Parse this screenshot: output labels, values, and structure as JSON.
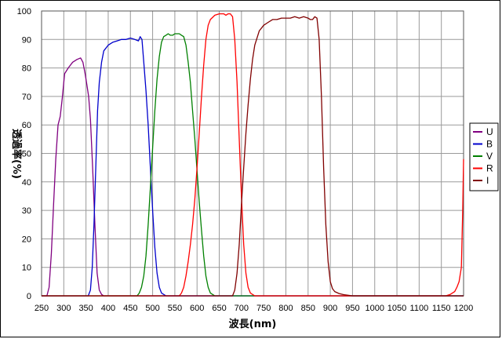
{
  "chart_data": {
    "type": "line",
    "title": "",
    "xlabel": "波長(nm)",
    "ylabel": "透過率(%)",
    "xlim": [
      250,
      1200
    ],
    "ylim": [
      0,
      100
    ],
    "xticks": [
      250,
      300,
      350,
      400,
      450,
      500,
      550,
      600,
      650,
      700,
      750,
      800,
      850,
      900,
      950,
      1000,
      1050,
      1100,
      1150,
      1200
    ],
    "yticks": [
      0,
      10,
      20,
      30,
      40,
      50,
      60,
      70,
      80,
      90,
      100
    ],
    "grid": true,
    "legend_position": "right",
    "series": [
      {
        "name": "U",
        "color": "#800080",
        "x": [
          250,
          262,
          267,
          272,
          277,
          282,
          287,
          292,
          297,
          302,
          310,
          320,
          330,
          338,
          343,
          348,
          352,
          356,
          360,
          365,
          370,
          375,
          380,
          385,
          390,
          400,
          500,
          1200
        ],
        "y": [
          0,
          0,
          3,
          15,
          32,
          48,
          60,
          63,
          70,
          78,
          80,
          82,
          83,
          83.5,
          82,
          78,
          74,
          70,
          62,
          45,
          25,
          8,
          2,
          0.5,
          0,
          0,
          0,
          0
        ]
      },
      {
        "name": "B",
        "color": "#0000cc",
        "x": [
          250,
          355,
          360,
          364,
          368,
          372,
          376,
          380,
          385,
          390,
          400,
          410,
          420,
          430,
          440,
          450,
          460,
          468,
          472,
          476,
          480,
          485,
          490,
          495,
          500,
          505,
          510,
          515,
          520,
          530,
          1200
        ],
        "y": [
          0,
          0,
          2,
          10,
          25,
          45,
          65,
          75,
          82,
          86,
          88,
          89,
          89.5,
          90,
          90,
          90.5,
          90,
          89.5,
          91,
          90,
          82,
          72,
          60,
          45,
          30,
          17,
          8,
          3,
          1,
          0,
          0
        ]
      },
      {
        "name": "V",
        "color": "#008000",
        "x": [
          250,
          465,
          470,
          475,
          480,
          485,
          490,
          495,
          500,
          505,
          510,
          515,
          520,
          525,
          530,
          535,
          540,
          545,
          550,
          555,
          560,
          565,
          570,
          575,
          580,
          585,
          590,
          595,
          600,
          605,
          610,
          615,
          620,
          625,
          630,
          640,
          1200
        ],
        "y": [
          0,
          0,
          1,
          3,
          7,
          14,
          25,
          38,
          52,
          65,
          76,
          84,
          89,
          91,
          91.5,
          92,
          91.5,
          91.5,
          92,
          92,
          92,
          91.5,
          91,
          88,
          82,
          75,
          65,
          55,
          44,
          33,
          23,
          14,
          7,
          3,
          1,
          0,
          0
        ]
      },
      {
        "name": "R",
        "color": "#ff0000",
        "x": [
          250,
          560,
          565,
          570,
          575,
          580,
          585,
          590,
          595,
          600,
          605,
          610,
          615,
          620,
          625,
          630,
          640,
          650,
          660,
          665,
          670,
          675,
          680,
          685,
          690,
          695,
          700,
          705,
          710,
          715,
          720,
          730,
          1160,
          1170,
          1180,
          1185,
          1190,
          1195,
          1198,
          1200
        ],
        "y": [
          0,
          0,
          1,
          3,
          7,
          12,
          18,
          25,
          34,
          45,
          57,
          70,
          81,
          90,
          95,
          97,
          98.5,
          99,
          99,
          98.5,
          99,
          99,
          98,
          90,
          75,
          55,
          35,
          18,
          8,
          3,
          1,
          0,
          0,
          0.5,
          1.5,
          3,
          5,
          10,
          30,
          48
        ]
      },
      {
        "name": "I",
        "color": "#800000",
        "x": [
          250,
          680,
          685,
          690,
          695,
          700,
          705,
          710,
          715,
          720,
          725,
          730,
          740,
          750,
          760,
          770,
          780,
          790,
          800,
          810,
          820,
          830,
          840,
          850,
          855,
          860,
          865,
          870,
          875,
          880,
          885,
          890,
          895,
          900,
          905,
          910,
          920,
          930,
          950,
          1200
        ],
        "y": [
          0,
          0,
          2,
          8,
          18,
          32,
          45,
          57,
          67,
          76,
          83,
          88,
          93,
          95,
          96,
          97,
          97,
          97.5,
          97.5,
          97.5,
          98,
          97.5,
          98,
          97.5,
          97,
          97,
          98,
          97.5,
          90,
          70,
          45,
          25,
          12,
          5,
          2.5,
          1.5,
          0.8,
          0.4,
          0,
          0
        ]
      }
    ]
  }
}
